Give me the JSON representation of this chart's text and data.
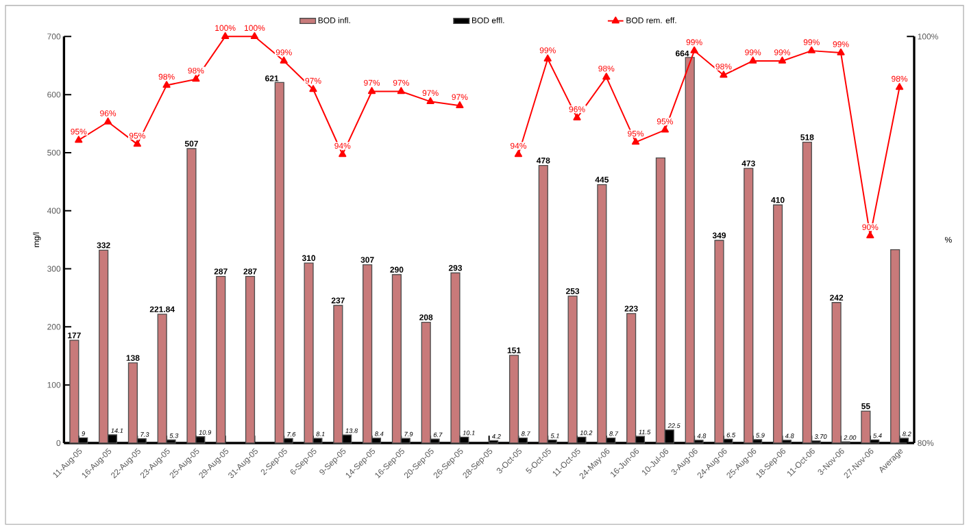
{
  "chart_data": {
    "type": "bar",
    "ylabel": "mg/l",
    "y2label": "%",
    "legend": "top",
    "categories": [
      "11-Aug-05",
      "16-Aug-05",
      "22-Aug-05",
      "23-Aug-05",
      "25-Aug-05",
      "29-Aug-05",
      "31-Aug-05",
      "2-Sep-05",
      "6-Sep-05",
      "9-Sep-05",
      "14-Sep-05",
      "16-Sep-05",
      "20-Sep-05",
      "26-Sep-05",
      "28-Sep-05",
      "3-Oct-05",
      "5-Oct-05",
      "11-Oct-05",
      "24-May-06",
      "16-Jun-06",
      "10-Jul-06",
      "3-Aug-06",
      "24-Aug-06",
      "25-Aug-06",
      "18-Sep-06",
      "11-Oct-06",
      "3-Nov-06",
      "27-Nov-06",
      "Average"
    ],
    "ylim": [
      0,
      700
    ],
    "yticks": [
      0,
      100,
      200,
      300,
      400,
      500,
      600,
      700
    ],
    "y2lim": [
      80,
      100
    ],
    "y2ticks": [
      {
        "value": 80,
        "label": "80%"
      },
      {
        "value": 100,
        "label": "100%"
      }
    ],
    "series": [
      {
        "name": "BOD infl.",
        "color": "#c87a7a",
        "values": [
          177,
          332,
          138,
          221.84,
          507,
          287,
          287,
          621,
          310,
          237,
          307,
          290,
          208,
          293,
          null,
          151,
          478,
          253,
          445,
          223,
          491,
          664,
          349,
          473,
          410,
          518,
          242,
          55,
          333
        ],
        "value_labels": [
          "177",
          "332",
          "138",
          "221.84",
          "507",
          "287",
          "287",
          "621",
          "310",
          "237",
          "307",
          "290",
          "208",
          "293",
          null,
          "151",
          "478",
          "253",
          "445",
          "223",
          null,
          "664",
          "349",
          "473",
          "410",
          "518",
          "242",
          "55",
          null
        ]
      },
      {
        "name": "BOD effl.",
        "color": "#000000",
        "values": [
          9,
          14.1,
          7.3,
          5.3,
          10.9,
          null,
          null,
          7.6,
          8.1,
          13.8,
          8.4,
          7.9,
          6.7,
          10.1,
          4.2,
          8.7,
          5.1,
          10.2,
          8.7,
          11.5,
          22.5,
          4.8,
          6.5,
          5.9,
          4.8,
          3.7,
          2.0,
          5.4,
          8.2
        ],
        "value_labels": [
          "9",
          "14.1",
          "7.3",
          "5.3",
          "10.9",
          null,
          null,
          "7.6",
          "8.1",
          "13.8",
          "8.4",
          "7.9",
          "6.7",
          "10.1",
          "4.2",
          "8.7",
          "5.1",
          "10.2",
          "8.7",
          "11.5",
          "22.5",
          "4.8",
          "6.5",
          "5.9",
          "4.8",
          "3.70",
          "2.00",
          "5.4",
          "8.2"
        ]
      },
      {
        "name": "BOD rem. eff.",
        "type": "line",
        "axis": "y2",
        "color": "#ff0000",
        "marker": "triangle",
        "values": [
          94.9,
          95.8,
          94.7,
          97.6,
          97.9,
          100,
          100,
          98.8,
          97.4,
          94.2,
          97.3,
          97.3,
          96.8,
          96.6,
          null,
          94.2,
          98.9,
          96.0,
          98.0,
          94.8,
          95.4,
          99.3,
          98.1,
          98.8,
          98.8,
          99.3,
          99.2,
          90.2,
          97.5
        ],
        "value_labels": [
          "95%",
          "96%",
          "95%",
          "98%",
          "98%",
          "100%",
          "100%",
          "99%",
          "97%",
          "94%",
          "97%",
          "97%",
          "97%",
          "97%",
          null,
          "94%",
          "99%",
          "96%",
          "98%",
          "95%",
          "95%",
          "99%",
          "98%",
          "99%",
          "99%",
          "99%",
          "99%",
          "90%",
          "98%"
        ]
      }
    ]
  }
}
